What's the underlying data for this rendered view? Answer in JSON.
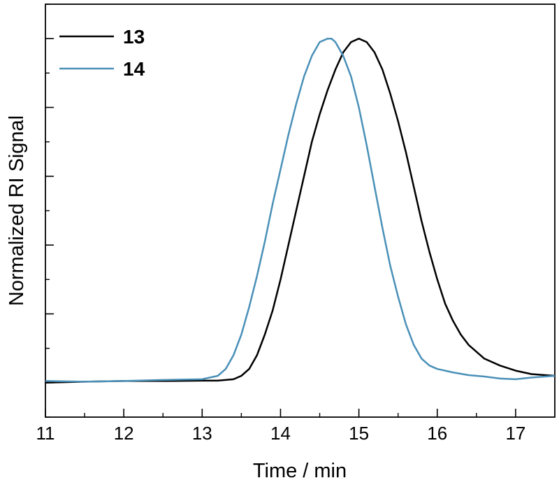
{
  "chart_data": {
    "type": "line",
    "title": "",
    "xlabel": "Time / min",
    "ylabel": "Normalized RI Signal",
    "xlim": [
      11,
      17.5
    ],
    "ylim": [
      -0.1,
      1.1
    ],
    "x_ticks": [
      11,
      12,
      13,
      14,
      15,
      16,
      17
    ],
    "x_tick_labels": [
      "11",
      "12",
      "13",
      "14",
      "15",
      "16",
      "17"
    ],
    "y_ticks": [
      0,
      0.2,
      0.4,
      0.6,
      0.8,
      1.0
    ],
    "y_tick_labels_visible": false,
    "grid": false,
    "legend_position": "top-left",
    "series": [
      {
        "name": "13",
        "color": "#000000",
        "x": [
          11.0,
          11.5,
          12.0,
          12.5,
          13.0,
          13.2,
          13.4,
          13.5,
          13.6,
          13.7,
          13.8,
          13.9,
          14.0,
          14.1,
          14.2,
          14.3,
          14.4,
          14.5,
          14.6,
          14.7,
          14.8,
          14.9,
          15.0,
          15.1,
          15.2,
          15.3,
          15.4,
          15.5,
          15.6,
          15.7,
          15.8,
          15.9,
          16.0,
          16.1,
          16.2,
          16.3,
          16.4,
          16.5,
          16.6,
          16.8,
          17.0,
          17.2,
          17.5
        ],
        "y": [
          0.0,
          0.003,
          0.005,
          0.005,
          0.006,
          0.006,
          0.01,
          0.02,
          0.04,
          0.08,
          0.14,
          0.21,
          0.3,
          0.4,
          0.5,
          0.6,
          0.7,
          0.78,
          0.85,
          0.91,
          0.96,
          0.99,
          1.0,
          0.99,
          0.96,
          0.91,
          0.84,
          0.76,
          0.67,
          0.57,
          0.47,
          0.38,
          0.3,
          0.23,
          0.18,
          0.14,
          0.11,
          0.09,
          0.07,
          0.05,
          0.035,
          0.025,
          0.02
        ]
      },
      {
        "name": "14",
        "color": "#4a90b8",
        "x": [
          11.0,
          11.5,
          12.0,
          12.5,
          13.0,
          13.2,
          13.3,
          13.4,
          13.5,
          13.6,
          13.7,
          13.8,
          13.9,
          14.0,
          14.1,
          14.2,
          14.3,
          14.4,
          14.5,
          14.6,
          14.65,
          14.7,
          14.8,
          14.9,
          15.0,
          15.1,
          15.2,
          15.3,
          15.4,
          15.5,
          15.6,
          15.7,
          15.8,
          15.9,
          16.0,
          16.1,
          16.2,
          16.4,
          16.6,
          16.8,
          17.0,
          17.2,
          17.5
        ],
        "y": [
          0.005,
          0.003,
          0.005,
          0.008,
          0.01,
          0.02,
          0.04,
          0.08,
          0.14,
          0.22,
          0.31,
          0.41,
          0.52,
          0.62,
          0.72,
          0.81,
          0.89,
          0.95,
          0.99,
          1.0,
          1.0,
          0.99,
          0.95,
          0.89,
          0.8,
          0.69,
          0.57,
          0.45,
          0.34,
          0.25,
          0.17,
          0.11,
          0.07,
          0.05,
          0.04,
          0.035,
          0.03,
          0.022,
          0.018,
          0.012,
          0.01,
          0.015,
          0.02
        ]
      }
    ]
  }
}
